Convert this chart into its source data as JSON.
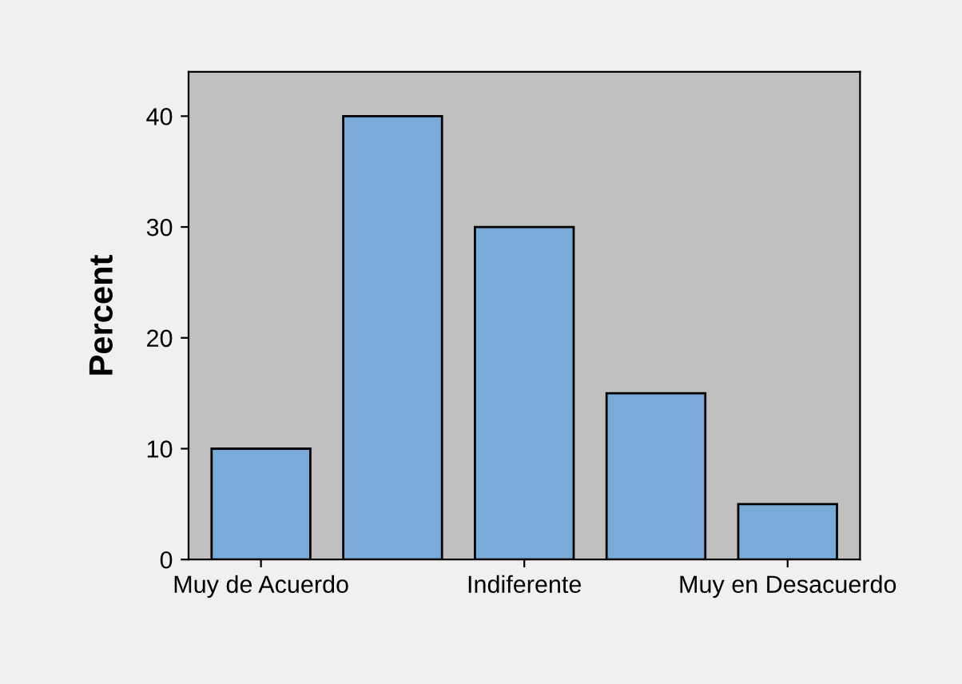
{
  "chart_data": {
    "type": "bar",
    "ylabel": "Percent",
    "categories": [
      "Muy de Acuerdo",
      null,
      "Indiferente",
      null,
      "Muy en Desacuerdo"
    ],
    "values": [
      10,
      40,
      30,
      15,
      5
    ],
    "color": "#7aaad8",
    "ylim": [
      0,
      44
    ],
    "yticks": [
      0,
      10,
      20,
      30,
      40
    ],
    "grid": false
  }
}
